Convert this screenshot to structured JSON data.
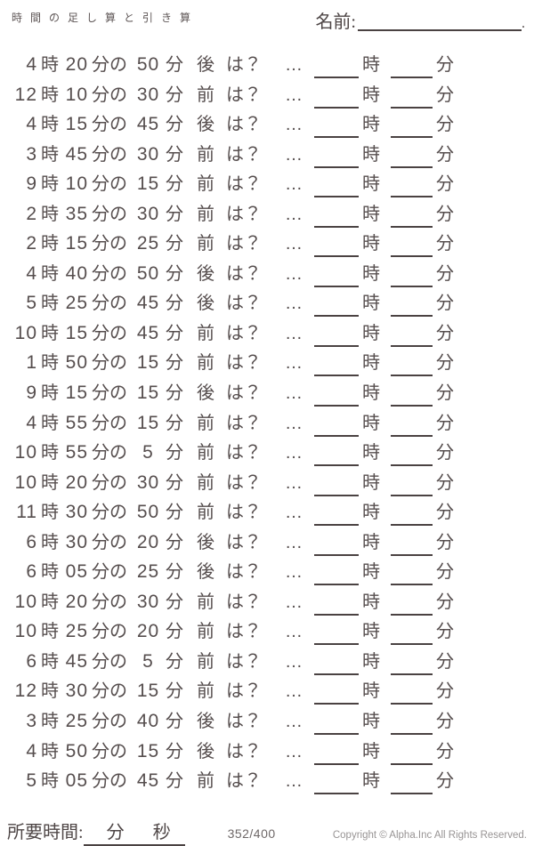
{
  "page": {
    "background": "#ffffff",
    "ink_color": "#564e4e",
    "line_color": "#4a4242",
    "muted_color": "#989494"
  },
  "header": {
    "title": "時間の足し算と引き算",
    "name_label": "名前:",
    "name_line_end": "."
  },
  "problem_template": {
    "hour_unit": "時",
    "minute_of_unit": "分の",
    "minute_unit": "分",
    "question": "は？",
    "ellipsis": "…",
    "answer_hour_unit": "時",
    "answer_minute_unit": "分"
  },
  "problems": [
    {
      "hour": "4",
      "minute": "20",
      "delta": "50",
      "direction": "後"
    },
    {
      "hour": "12",
      "minute": "10",
      "delta": "30",
      "direction": "前"
    },
    {
      "hour": "4",
      "minute": "15",
      "delta": "45",
      "direction": "後"
    },
    {
      "hour": "3",
      "minute": "45",
      "delta": "30",
      "direction": "前"
    },
    {
      "hour": "9",
      "minute": "10",
      "delta": "15",
      "direction": "前"
    },
    {
      "hour": "2",
      "minute": "35",
      "delta": "30",
      "direction": "前"
    },
    {
      "hour": "2",
      "minute": "15",
      "delta": "25",
      "direction": "前"
    },
    {
      "hour": "4",
      "minute": "40",
      "delta": "50",
      "direction": "後"
    },
    {
      "hour": "5",
      "minute": "25",
      "delta": "45",
      "direction": "後"
    },
    {
      "hour": "10",
      "minute": "15",
      "delta": "45",
      "direction": "前"
    },
    {
      "hour": "1",
      "minute": "50",
      "delta": "15",
      "direction": "前"
    },
    {
      "hour": "9",
      "minute": "15",
      "delta": "15",
      "direction": "後"
    },
    {
      "hour": "4",
      "minute": "55",
      "delta": "15",
      "direction": "前"
    },
    {
      "hour": "10",
      "minute": "55",
      "delta": "5",
      "direction": "前"
    },
    {
      "hour": "10",
      "minute": "20",
      "delta": "30",
      "direction": "前"
    },
    {
      "hour": "11",
      "minute": "30",
      "delta": "50",
      "direction": "前"
    },
    {
      "hour": "6",
      "minute": "30",
      "delta": "20",
      "direction": "後"
    },
    {
      "hour": "6",
      "minute": "05",
      "delta": "25",
      "direction": "後"
    },
    {
      "hour": "10",
      "minute": "20",
      "delta": "30",
      "direction": "前"
    },
    {
      "hour": "10",
      "minute": "25",
      "delta": "20",
      "direction": "前"
    },
    {
      "hour": "6",
      "minute": "45",
      "delta": "5",
      "direction": "前"
    },
    {
      "hour": "12",
      "minute": "30",
      "delta": "15",
      "direction": "前"
    },
    {
      "hour": "3",
      "minute": "25",
      "delta": "40",
      "direction": "後"
    },
    {
      "hour": "4",
      "minute": "50",
      "delta": "15",
      "direction": "後"
    },
    {
      "hour": "5",
      "minute": "05",
      "delta": "45",
      "direction": "前"
    }
  ],
  "footer": {
    "elapsed_label": "所要時間:",
    "elapsed_minute_unit": "分",
    "elapsed_second_unit": "秒",
    "progress": "352/400",
    "copyright": "Copyright ©  Alpha.Inc All Rights Reserved."
  }
}
